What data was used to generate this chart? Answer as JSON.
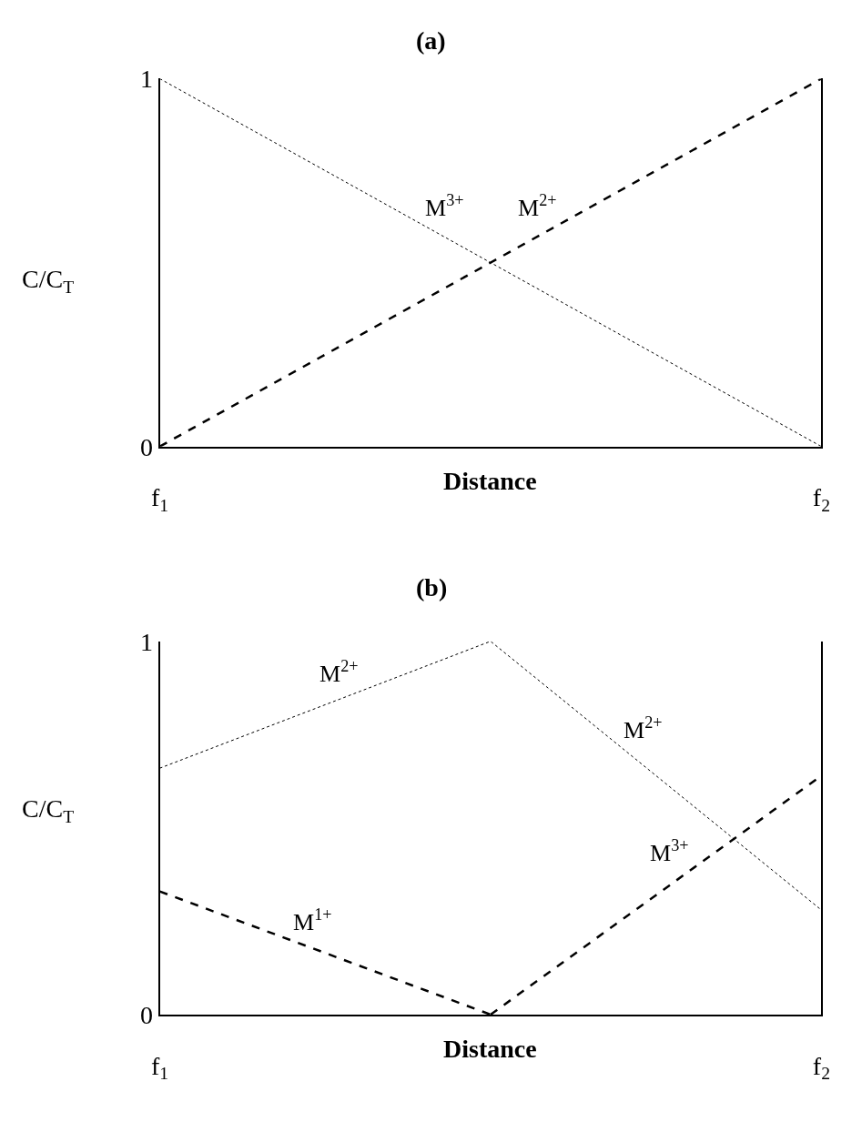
{
  "chart_data": [
    {
      "type": "line",
      "title": "(a)",
      "xlabel": "Distance",
      "ylabel": "C/C$_{T}$",
      "categories": [
        "f$_{1}$",
        "f$_{2}$"
      ],
      "ylim": [
        0,
        1
      ],
      "yticks": [
        0,
        1
      ],
      "legend": false,
      "series": [
        {
          "name": "M$^{3+}$",
          "color": "#000000",
          "line_style": "dotted",
          "values": [
            1,
            0
          ]
        },
        {
          "name": "M$^{2+}$",
          "color": "#000000",
          "line_style": "dashed",
          "values": [
            0,
            1
          ]
        }
      ]
    },
    {
      "type": "line",
      "title": "(b)",
      "xlabel": "Distance",
      "ylabel": "C/C$_{T}$",
      "categories": [
        "f$_{1}$",
        null,
        "f$_{2}$"
      ],
      "ylim": [
        0,
        1
      ],
      "yticks": [
        0,
        1
      ],
      "legend": false,
      "series": [
        {
          "name": "M$^{2+}$",
          "color": "#000000",
          "line_style": "dotted",
          "values": [
            0.66,
            1,
            0.28
          ]
        },
        {
          "name": "M$^{1+}$",
          "color": "#000000",
          "line_style": "dashed",
          "values": [
            0.33,
            0,
            null
          ]
        },
        {
          "name": "M$^{3+}$",
          "color": "#000000",
          "line_style": "dashed",
          "values": [
            null,
            0,
            0.64
          ]
        }
      ]
    }
  ]
}
